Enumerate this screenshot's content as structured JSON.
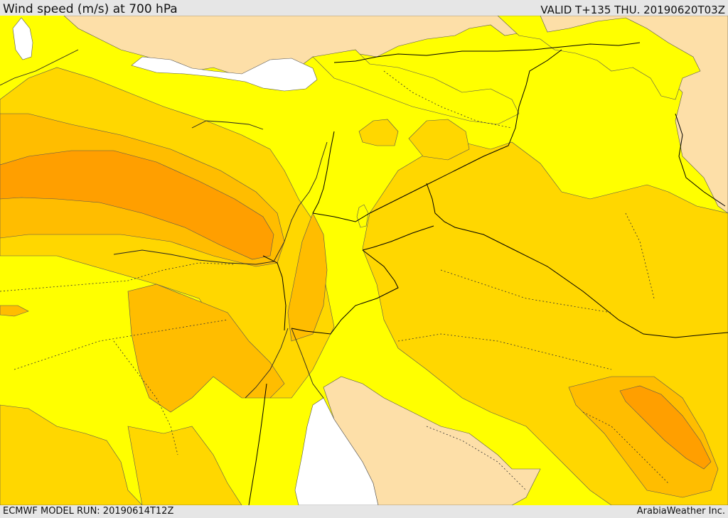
{
  "header": {
    "title": "Wind speed (m/s) at 700 hPa",
    "valid": "VALID T+135 THU. 20190620T03Z"
  },
  "footer": {
    "model_run": "ECMWF MODEL RUN: 20190614T12Z",
    "credit": "ArabiaWeather Inc."
  },
  "map": {
    "colors": {
      "land_outside_domain": "#fddfa8",
      "sea_outside_domain": "#ffffff",
      "band_1": "#ffff00",
      "band_2": "#ffd700",
      "band_3": "#ffbd00",
      "band_4": "#ff9f00",
      "contour": "#555555",
      "border": "#000000"
    }
  }
}
